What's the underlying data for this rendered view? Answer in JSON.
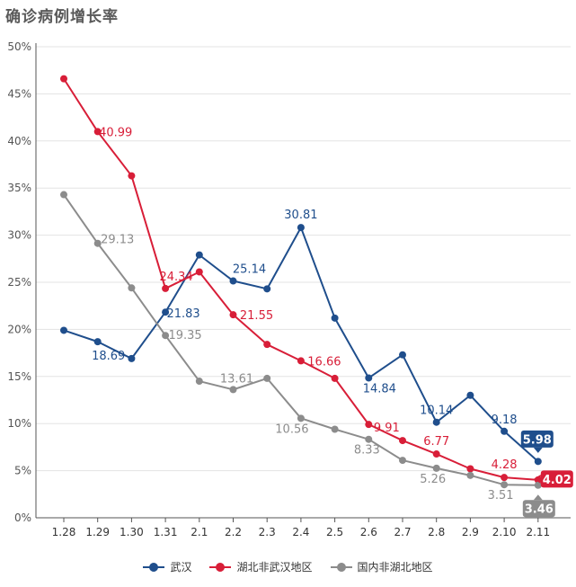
{
  "chart_data": {
    "type": "line",
    "title": "确诊病例增长率",
    "categories": [
      "1.28",
      "1.29",
      "1.30",
      "1.31",
      "2.1",
      "2.2",
      "2.3",
      "2.4",
      "2.5",
      "2.6",
      "2.7",
      "2.8",
      "2.9",
      "2.10",
      "2.11"
    ],
    "ylim": [
      0,
      50
    ],
    "yticks": [
      "0%",
      "5%",
      "10%",
      "15%",
      "20%",
      "25%",
      "30%",
      "35%",
      "40%",
      "45%",
      "50%"
    ],
    "grid": true,
    "legend_position": "bottom",
    "series": [
      {
        "name": "武汉",
        "color": "#1f4e8c",
        "values": [
          19.9,
          18.69,
          16.9,
          21.83,
          27.9,
          25.14,
          24.3,
          30.81,
          21.2,
          14.84,
          17.3,
          10.14,
          13.0,
          9.18,
          5.98
        ],
        "labels": [
          "",
          "18.69",
          "",
          "21.83",
          "",
          "25.14",
          "",
          "30.81",
          "",
          "14.84",
          "",
          "10.14",
          "",
          "9.18",
          "5.98"
        ]
      },
      {
        "name": "湖北非武汉地区",
        "color": "#d81e38",
        "values": [
          46.6,
          40.99,
          36.3,
          24.34,
          26.1,
          21.55,
          18.4,
          16.66,
          14.8,
          9.91,
          8.2,
          6.77,
          5.2,
          4.28,
          4.02
        ],
        "labels": [
          "",
          "40.99",
          "",
          "24.34",
          "",
          "21.55",
          "",
          "16.66",
          "",
          "9.91",
          "",
          "6.77",
          "",
          "4.28",
          "4.02"
        ]
      },
      {
        "name": "国内非湖北地区",
        "color": "#8c8c8c",
        "values": [
          34.3,
          29.13,
          24.4,
          19.35,
          14.5,
          13.61,
          14.8,
          10.56,
          9.4,
          8.33,
          6.1,
          5.26,
          4.5,
          3.51,
          3.46
        ],
        "labels": [
          "",
          "29.13",
          "",
          "19.35",
          "",
          "13.61",
          "",
          "10.56",
          "",
          "8.33",
          "",
          "5.26",
          "",
          "3.51",
          "3.46"
        ]
      }
    ]
  }
}
